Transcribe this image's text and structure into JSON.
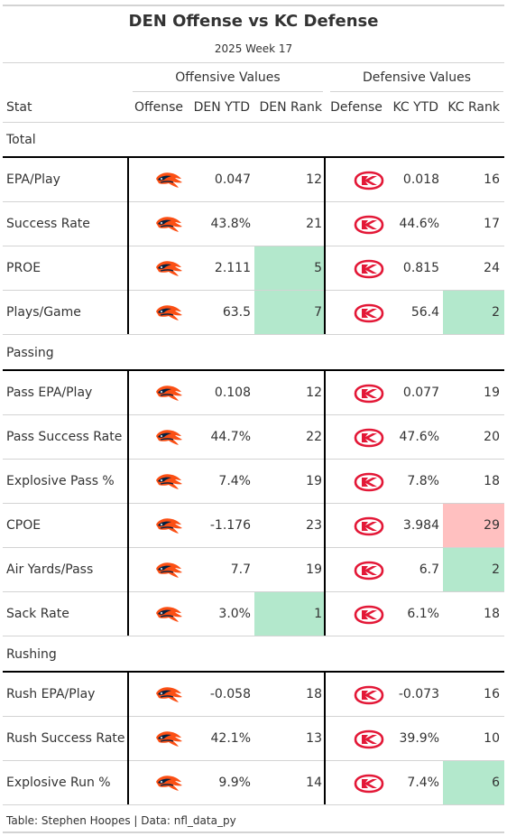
{
  "title": "DEN Offense vs KC Defense",
  "subtitle": "2025 Week 17",
  "spanners": {
    "offense": "Offensive Values",
    "defense": "Defensive Values"
  },
  "columns": [
    "Stat",
    "Offense",
    "DEN YTD",
    "DEN Rank",
    "Defense",
    "KC YTD",
    "KC Rank"
  ],
  "colors": {
    "good": "#b3e8cc",
    "bad": "#ffc0c0",
    "broncos_orange": "#fb4f14",
    "broncos_navy": "#002244",
    "chiefs_red": "#e31837",
    "chiefs_gold": "#ffb81c"
  },
  "chart_data": {
    "type": "table",
    "title": "DEN Offense vs KC Defense",
    "subtitle": "2025 Week 17",
    "groups": [
      {
        "name": "Total",
        "rows": [
          {
            "stat": "EPA/Play",
            "offense_logo": "broncos-logo",
            "den_ytd": "0.047",
            "den_rank": "12",
            "den_highlight": "",
            "defense_logo": "chiefs-logo",
            "kc_ytd": "0.018",
            "kc_rank": "16",
            "kc_highlight": ""
          },
          {
            "stat": "Success Rate",
            "offense_logo": "broncos-logo",
            "den_ytd": "43.8%",
            "den_rank": "21",
            "den_highlight": "",
            "defense_logo": "chiefs-logo",
            "kc_ytd": "44.6%",
            "kc_rank": "17",
            "kc_highlight": ""
          },
          {
            "stat": "PROE",
            "offense_logo": "broncos-logo",
            "den_ytd": "2.111",
            "den_rank": "5",
            "den_highlight": "good",
            "defense_logo": "chiefs-logo",
            "kc_ytd": "0.815",
            "kc_rank": "24",
            "kc_highlight": ""
          },
          {
            "stat": "Plays/Game",
            "offense_logo": "broncos-logo",
            "den_ytd": "63.5",
            "den_rank": "7",
            "den_highlight": "good",
            "defense_logo": "chiefs-logo",
            "kc_ytd": "56.4",
            "kc_rank": "2",
            "kc_highlight": "good"
          }
        ]
      },
      {
        "name": "Passing",
        "rows": [
          {
            "stat": "Pass EPA/Play",
            "offense_logo": "broncos-logo",
            "den_ytd": "0.108",
            "den_rank": "12",
            "den_highlight": "",
            "defense_logo": "chiefs-logo",
            "kc_ytd": "0.077",
            "kc_rank": "19",
            "kc_highlight": ""
          },
          {
            "stat": "Pass Success Rate",
            "offense_logo": "broncos-logo",
            "den_ytd": "44.7%",
            "den_rank": "22",
            "den_highlight": "",
            "defense_logo": "chiefs-logo",
            "kc_ytd": "47.6%",
            "kc_rank": "20",
            "kc_highlight": ""
          },
          {
            "stat": "Explosive Pass %",
            "offense_logo": "broncos-logo",
            "den_ytd": "7.4%",
            "den_rank": "19",
            "den_highlight": "",
            "defense_logo": "chiefs-logo",
            "kc_ytd": "7.8%",
            "kc_rank": "18",
            "kc_highlight": ""
          },
          {
            "stat": "CPOE",
            "offense_logo": "broncos-logo",
            "den_ytd": "-1.176",
            "den_rank": "23",
            "den_highlight": "",
            "defense_logo": "chiefs-logo",
            "kc_ytd": "3.984",
            "kc_rank": "29",
            "kc_highlight": "bad"
          },
          {
            "stat": "Air Yards/Pass",
            "offense_logo": "broncos-logo",
            "den_ytd": "7.7",
            "den_rank": "19",
            "den_highlight": "",
            "defense_logo": "chiefs-logo",
            "kc_ytd": "6.7",
            "kc_rank": "2",
            "kc_highlight": "good"
          },
          {
            "stat": "Sack Rate",
            "offense_logo": "broncos-logo",
            "den_ytd": "3.0%",
            "den_rank": "1",
            "den_highlight": "good",
            "defense_logo": "chiefs-logo",
            "kc_ytd": "6.1%",
            "kc_rank": "18",
            "kc_highlight": ""
          }
        ]
      },
      {
        "name": "Rushing",
        "rows": [
          {
            "stat": "Rush EPA/Play",
            "offense_logo": "broncos-logo",
            "den_ytd": "-0.058",
            "den_rank": "18",
            "den_highlight": "",
            "defense_logo": "chiefs-logo",
            "kc_ytd": "-0.073",
            "kc_rank": "16",
            "kc_highlight": ""
          },
          {
            "stat": "Rush Success Rate",
            "offense_logo": "broncos-logo",
            "den_ytd": "42.1%",
            "den_rank": "13",
            "den_highlight": "",
            "defense_logo": "chiefs-logo",
            "kc_ytd": "39.9%",
            "kc_rank": "10",
            "kc_highlight": ""
          },
          {
            "stat": "Explosive Run %",
            "offense_logo": "broncos-logo",
            "den_ytd": "9.9%",
            "den_rank": "14",
            "den_highlight": "",
            "defense_logo": "chiefs-logo",
            "kc_ytd": "7.4%",
            "kc_rank": "6",
            "kc_highlight": "good"
          }
        ]
      }
    ]
  },
  "footer": "Table: Stephen Hoopes | Data: nfl_data_py"
}
